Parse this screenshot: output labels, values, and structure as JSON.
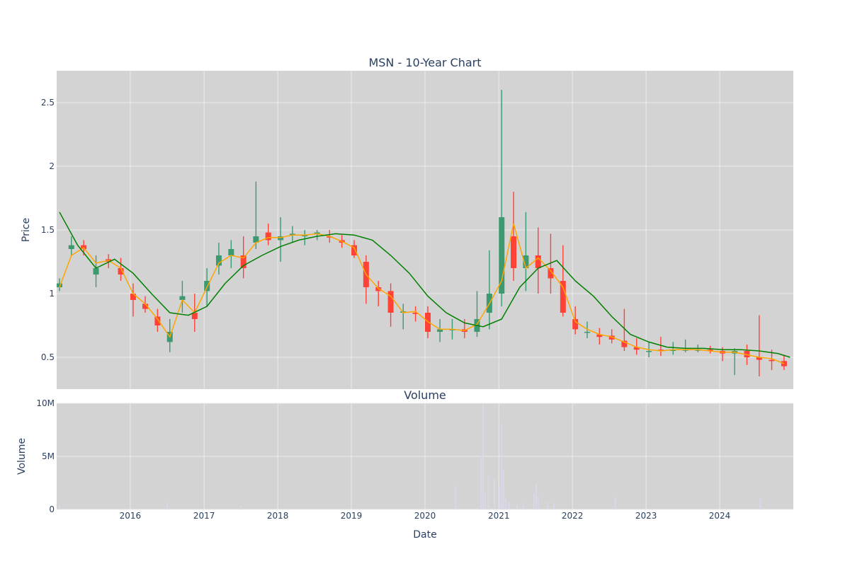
{
  "chart_data": [
    {
      "type": "candlestick",
      "title": "MSN - 10-Year Chart",
      "xlabel": "",
      "ylabel": "Price",
      "xlim": [
        "2015-01-01",
        "2024-12-31"
      ],
      "ylim": [
        0.25,
        2.75
      ],
      "yticks": [
        0.5,
        1,
        1.5,
        2,
        2.5
      ],
      "ytick_labels": [
        "0.5",
        "1",
        "1.5",
        "2",
        "2.5"
      ],
      "grid": true,
      "background": "#d3d3d3",
      "colors": {
        "up": "#3d9970",
        "down": "#ff4136",
        "ma_short": "#ffa500",
        "ma_long": "#008000"
      },
      "series": [
        {
          "kind": "candles",
          "x": [
            "2015-01",
            "2015-03",
            "2015-05",
            "2015-07",
            "2015-09",
            "2015-11",
            "2016-01",
            "2016-03",
            "2016-05",
            "2016-07",
            "2016-09",
            "2016-11",
            "2017-01",
            "2017-03",
            "2017-05",
            "2017-07",
            "2017-09",
            "2017-11",
            "2018-01",
            "2018-03",
            "2018-05",
            "2018-07",
            "2018-09",
            "2018-11",
            "2019-01",
            "2019-03",
            "2019-05",
            "2019-07",
            "2019-09",
            "2019-11",
            "2020-01",
            "2020-03",
            "2020-05",
            "2020-07",
            "2020-09",
            "2020-11",
            "2021-01",
            "2021-03",
            "2021-05",
            "2021-07",
            "2021-09",
            "2021-11",
            "2022-01",
            "2022-03",
            "2022-05",
            "2022-07",
            "2022-09",
            "2022-11",
            "2023-01",
            "2023-03",
            "2023-05",
            "2023-07",
            "2023-09",
            "2023-11",
            "2024-01",
            "2024-03",
            "2024-05",
            "2024-07",
            "2024-09",
            "2024-11"
          ],
          "open": [
            1.05,
            1.35,
            1.38,
            1.15,
            1.27,
            1.2,
            1.0,
            0.92,
            0.82,
            0.62,
            0.95,
            0.85,
            1.02,
            1.22,
            1.3,
            1.3,
            1.4,
            1.48,
            1.42,
            1.46,
            1.45,
            1.47,
            1.45,
            1.42,
            1.38,
            1.25,
            1.05,
            1.02,
            0.85,
            0.85,
            0.85,
            0.7,
            0.72,
            0.72,
            0.7,
            0.85,
            1.0,
            1.45,
            1.2,
            1.3,
            1.2,
            1.1,
            0.8,
            0.7,
            0.68,
            0.67,
            0.63,
            0.58,
            0.55,
            0.56,
            0.55,
            0.56,
            0.56,
            0.56,
            0.55,
            0.53,
            0.55,
            0.5,
            0.48,
            0.47
          ],
          "high": [
            1.12,
            1.45,
            1.42,
            1.3,
            1.31,
            1.28,
            1.08,
            0.98,
            0.88,
            0.8,
            1.1,
            1.0,
            1.2,
            1.4,
            1.42,
            1.45,
            1.88,
            1.55,
            1.6,
            1.53,
            1.5,
            1.5,
            1.5,
            1.46,
            1.42,
            1.3,
            1.1,
            1.08,
            0.92,
            0.9,
            0.9,
            0.8,
            0.8,
            0.8,
            1.02,
            1.34,
            2.6,
            1.8,
            1.64,
            1.52,
            1.47,
            1.38,
            0.9,
            0.78,
            0.73,
            0.72,
            0.88,
            0.65,
            0.62,
            0.66,
            0.62,
            0.64,
            0.6,
            0.59,
            0.58,
            0.57,
            0.6,
            0.83,
            0.56,
            0.52
          ],
          "low": [
            1.02,
            1.3,
            1.3,
            1.05,
            1.2,
            1.1,
            0.82,
            0.85,
            0.7,
            0.54,
            0.85,
            0.7,
            0.9,
            1.15,
            1.2,
            1.12,
            1.35,
            1.38,
            1.25,
            1.4,
            1.38,
            1.42,
            1.4,
            1.36,
            1.28,
            0.92,
            0.9,
            0.74,
            0.72,
            0.78,
            0.65,
            0.62,
            0.64,
            0.65,
            0.66,
            0.72,
            0.9,
            1.1,
            1.02,
            1.0,
            1.0,
            0.82,
            0.68,
            0.65,
            0.6,
            0.61,
            0.55,
            0.52,
            0.5,
            0.51,
            0.52,
            0.54,
            0.54,
            0.53,
            0.47,
            0.36,
            0.44,
            0.35,
            0.4,
            0.4
          ],
          "close": [
            1.08,
            1.38,
            1.35,
            1.2,
            1.25,
            1.15,
            0.95,
            0.88,
            0.75,
            0.7,
            0.98,
            0.8,
            1.1,
            1.3,
            1.35,
            1.2,
            1.45,
            1.42,
            1.45,
            1.47,
            1.46,
            1.48,
            1.44,
            1.4,
            1.3,
            1.05,
            1.02,
            0.85,
            0.86,
            0.84,
            0.7,
            0.72,
            0.72,
            0.7,
            0.8,
            1.0,
            1.6,
            1.2,
            1.3,
            1.2,
            1.12,
            0.85,
            0.72,
            0.7,
            0.66,
            0.64,
            0.58,
            0.56,
            0.55,
            0.55,
            0.56,
            0.56,
            0.56,
            0.55,
            0.53,
            0.55,
            0.5,
            0.48,
            0.47,
            0.43
          ]
        },
        {
          "kind": "line",
          "color": "#ffa500",
          "x": [
            "2015-01",
            "2015-03",
            "2015-05",
            "2015-07",
            "2015-09",
            "2015-11",
            "2016-01",
            "2016-03",
            "2016-05",
            "2016-07",
            "2016-09",
            "2016-11",
            "2017-01",
            "2017-03",
            "2017-05",
            "2017-07",
            "2017-09",
            "2017-11",
            "2018-01",
            "2018-03",
            "2018-05",
            "2018-07",
            "2018-09",
            "2018-11",
            "2019-01",
            "2019-03",
            "2019-05",
            "2019-07",
            "2019-09",
            "2019-11",
            "2020-01",
            "2020-03",
            "2020-05",
            "2020-07",
            "2020-09",
            "2020-11",
            "2021-01",
            "2021-03",
            "2021-05",
            "2021-07",
            "2021-09",
            "2021-11",
            "2022-01",
            "2022-03",
            "2022-05",
            "2022-07",
            "2022-09",
            "2022-11",
            "2023-01",
            "2023-03",
            "2023-05",
            "2023-07",
            "2023-09",
            "2023-11",
            "2024-01",
            "2024-03",
            "2024-05",
            "2024-07",
            "2024-09",
            "2024-11"
          ],
          "y": [
            1.05,
            1.3,
            1.36,
            1.24,
            1.26,
            1.2,
            1.0,
            0.92,
            0.8,
            0.66,
            0.95,
            0.85,
            1.05,
            1.24,
            1.3,
            1.28,
            1.4,
            1.44,
            1.44,
            1.46,
            1.46,
            1.47,
            1.45,
            1.41,
            1.36,
            1.15,
            1.04,
            0.98,
            0.85,
            0.86,
            0.78,
            0.72,
            0.72,
            0.71,
            0.76,
            0.92,
            1.1,
            1.55,
            1.2,
            1.28,
            1.18,
            1.05,
            0.78,
            0.72,
            0.68,
            0.66,
            0.62,
            0.58,
            0.56,
            0.55,
            0.56,
            0.56,
            0.56,
            0.55,
            0.54,
            0.54,
            0.52,
            0.5,
            0.49,
            0.45
          ]
        },
        {
          "kind": "line",
          "color": "#008000",
          "x": [
            "2015-01",
            "2015-04",
            "2015-07",
            "2015-10",
            "2016-01",
            "2016-04",
            "2016-07",
            "2016-10",
            "2017-01",
            "2017-04",
            "2017-07",
            "2017-10",
            "2018-01",
            "2018-04",
            "2018-07",
            "2018-10",
            "2019-01",
            "2019-04",
            "2019-07",
            "2019-10",
            "2020-01",
            "2020-04",
            "2020-07",
            "2020-10",
            "2021-01",
            "2021-04",
            "2021-07",
            "2021-10",
            "2022-01",
            "2022-04",
            "2022-07",
            "2022-10",
            "2023-01",
            "2023-04",
            "2023-07",
            "2023-10",
            "2024-01",
            "2024-04",
            "2024-07",
            "2024-10",
            "2024-12"
          ],
          "y": [
            1.64,
            1.38,
            1.2,
            1.27,
            1.16,
            1.0,
            0.85,
            0.83,
            0.9,
            1.08,
            1.22,
            1.3,
            1.37,
            1.42,
            1.45,
            1.47,
            1.46,
            1.42,
            1.3,
            1.16,
            0.98,
            0.85,
            0.77,
            0.74,
            0.8,
            1.05,
            1.2,
            1.26,
            1.1,
            0.98,
            0.82,
            0.68,
            0.62,
            0.58,
            0.57,
            0.57,
            0.56,
            0.56,
            0.55,
            0.53,
            0.5
          ]
        }
      ]
    },
    {
      "type": "bar",
      "title": "Volume",
      "xlabel": "Date",
      "ylabel": "Volume",
      "xlim": [
        "2015-01-01",
        "2024-12-31"
      ],
      "ylim": [
        0,
        10000000
      ],
      "yticks": [
        0,
        5000000,
        10000000
      ],
      "ytick_labels": [
        "0",
        "5M",
        "10M"
      ],
      "xtick_labels": [
        "2016",
        "2017",
        "2018",
        "2019",
        "2020",
        "2021",
        "2022",
        "2023",
        "2024"
      ],
      "grid": true,
      "background": "#d3d3d3",
      "bar_color": "#d8d8e8",
      "x": [
        "2015-01-15",
        "2016-07-01",
        "2017-07-01",
        "2020-06-01",
        "2020-10-05",
        "2020-10-15",
        "2020-10-25",
        "2020-11-10",
        "2020-12-10",
        "2021-01-05",
        "2021-01-15",
        "2021-01-25",
        "2021-02-05",
        "2021-02-20",
        "2021-04-01",
        "2021-05-01",
        "2021-06-25",
        "2021-07-05",
        "2021-07-15",
        "2021-09-01",
        "2021-10-01",
        "2022-08-01",
        "2024-07-20"
      ],
      "values": [
        400000,
        600000,
        350000,
        2200000,
        5000000,
        9900000,
        1500000,
        3200000,
        2800000,
        2200000,
        8100000,
        3700000,
        1000000,
        700000,
        500000,
        600000,
        1500000,
        2400000,
        1200000,
        700000,
        600000,
        1100000,
        1000000
      ]
    }
  ]
}
